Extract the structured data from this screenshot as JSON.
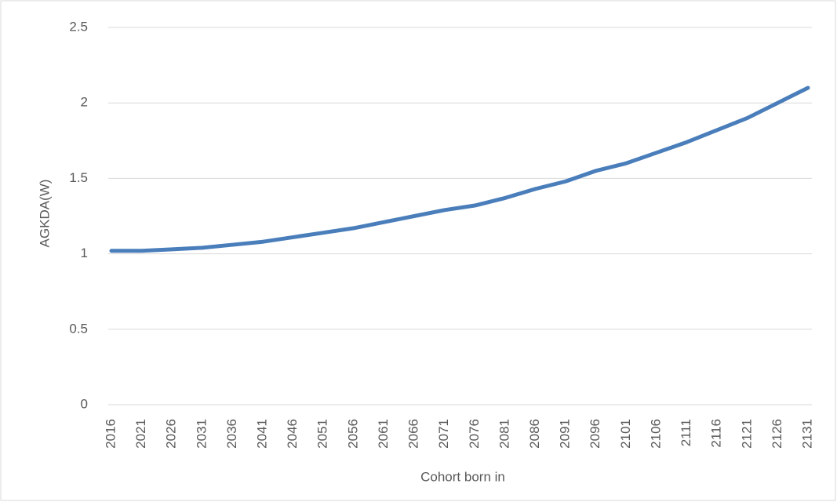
{
  "chart_data": {
    "type": "line",
    "x_label": "Cohort born in",
    "y_label": "AGKDA(W)",
    "categories": [
      "2016",
      "2021",
      "2026",
      "2031",
      "2036",
      "2041",
      "2046",
      "2051",
      "2056",
      "2061",
      "2066",
      "2071",
      "2076",
      "2081",
      "2086",
      "2091",
      "2096",
      "2101",
      "2106",
      "2111",
      "2116",
      "2121",
      "2126",
      "2131"
    ],
    "series": [
      {
        "name": "AGKDA(W)",
        "color": "#4a7ebb",
        "values": [
          1.02,
          1.02,
          1.03,
          1.04,
          1.06,
          1.08,
          1.11,
          1.14,
          1.17,
          1.21,
          1.25,
          1.29,
          1.32,
          1.37,
          1.43,
          1.48,
          1.55,
          1.6,
          1.67,
          1.74,
          1.82,
          1.9,
          2.0,
          2.1
        ]
      }
    ],
    "ylim": [
      0,
      2.5
    ],
    "yticks": [
      0,
      0.5,
      1,
      1.5,
      2,
      2.5
    ],
    "grid": true
  }
}
